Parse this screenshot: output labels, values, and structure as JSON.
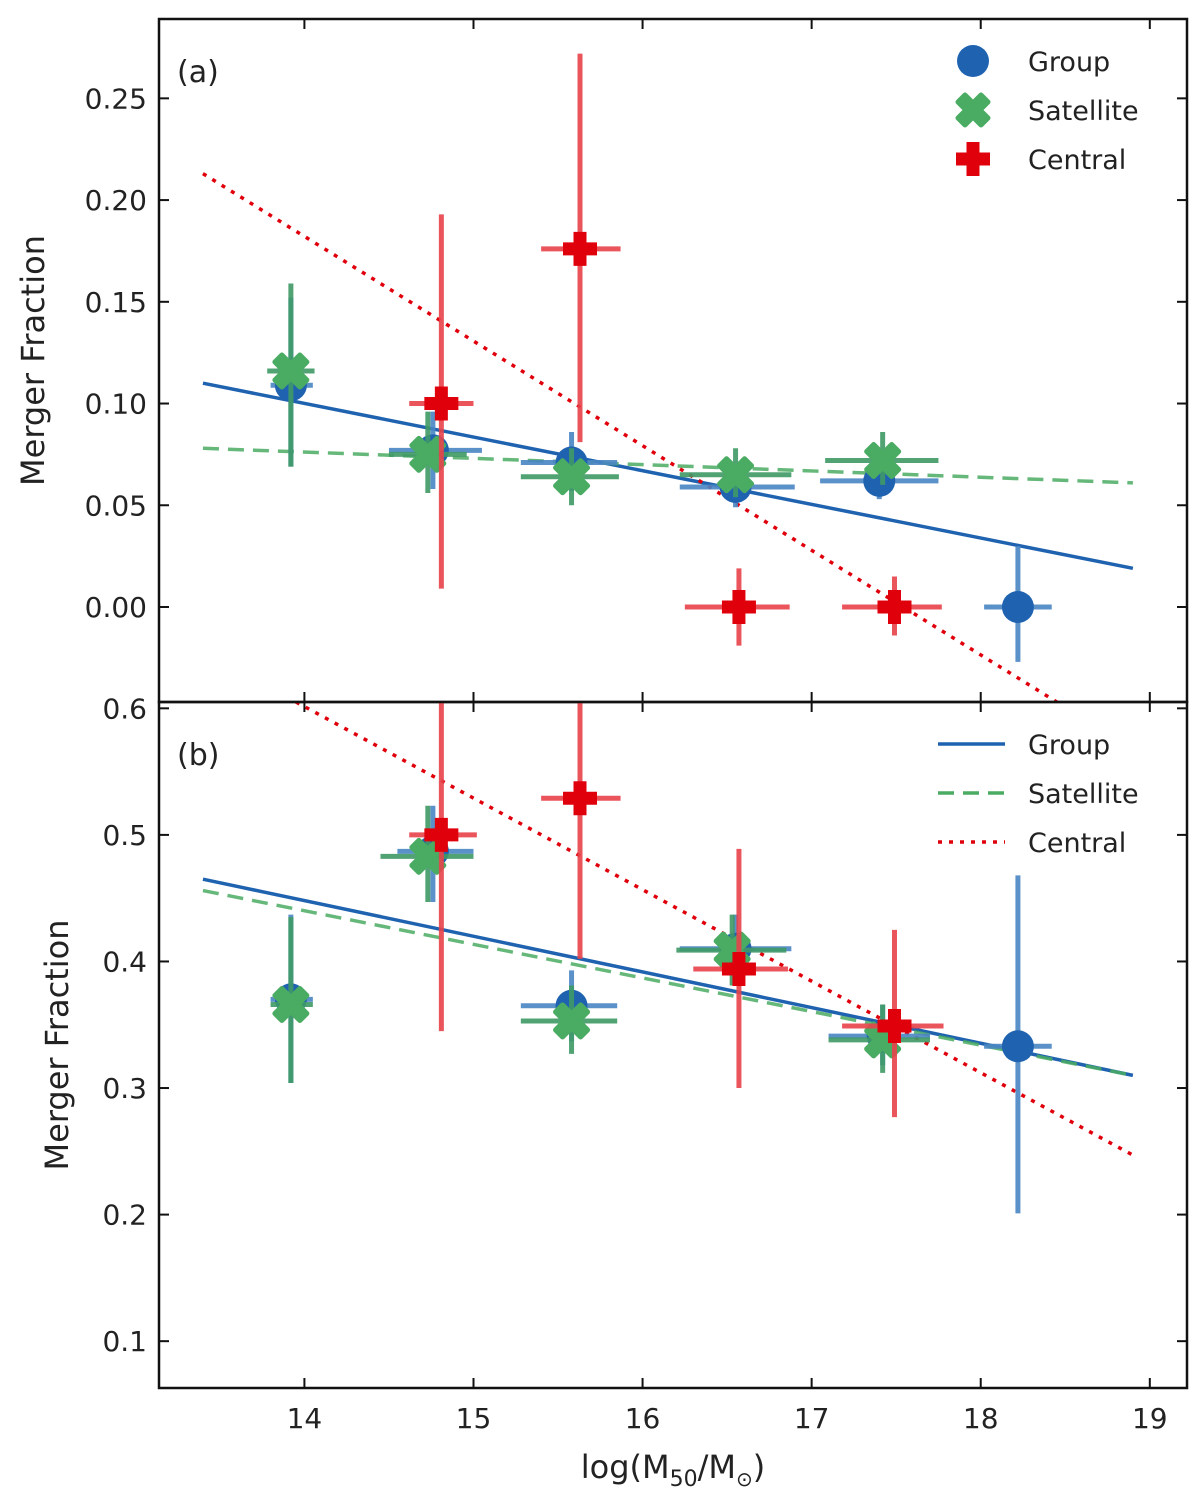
{
  "colors": {
    "group": "#1f63b0",
    "satellite": "#4aac62",
    "central": "#e0000b",
    "group_err": "#4a86c4",
    "satellite_err": "#3f9a66",
    "central_err": "#e8434b"
  },
  "chart_data": [
    {
      "type": "scatter",
      "panel_label": "(a)",
      "ylabel": "Merger Fraction",
      "xlabel": "",
      "xlim": [
        13.14,
        19.22
      ],
      "ylim": [
        -0.0467,
        0.289
      ],
      "yticks": [
        0.0,
        0.05,
        0.1,
        0.15,
        0.2,
        0.25
      ],
      "ytick_labels": [
        "0.00",
        "0.05",
        "0.10",
        "0.15",
        "0.20",
        "0.25"
      ],
      "xticks": [
        14,
        15,
        16,
        17,
        18,
        19
      ],
      "grid": false,
      "legend": {
        "placement": "top-right",
        "style": "markers",
        "entries": [
          "Group",
          "Satellite",
          "Central"
        ]
      },
      "series": [
        {
          "name": "Group",
          "key": "group",
          "marker": "circle",
          "points": [
            {
              "x": 13.92,
              "y": 0.109,
              "ylo": 0.069,
              "yhi": 0.152,
              "xlo": 13.8,
              "xhi": 14.05
            },
            {
              "x": 14.76,
              "y": 0.077,
              "ylo": 0.058,
              "yhi": 0.096,
              "xlo": 14.5,
              "xhi": 15.05
            },
            {
              "x": 15.58,
              "y": 0.071,
              "ylo": 0.057,
              "yhi": 0.086,
              "xlo": 15.28,
              "xhi": 15.85
            },
            {
              "x": 16.55,
              "y": 0.059,
              "ylo": 0.049,
              "yhi": 0.069,
              "xlo": 16.22,
              "xhi": 16.9
            },
            {
              "x": 17.4,
              "y": 0.062,
              "ylo": 0.053,
              "yhi": 0.071,
              "xlo": 17.05,
              "xhi": 17.75
            },
            {
              "x": 18.22,
              "y": 0.0,
              "ylo": -0.027,
              "yhi": 0.03,
              "xlo": 18.02,
              "xhi": 18.42
            }
          ],
          "fit": {
            "style": "solid",
            "x": [
              13.4,
              18.9
            ],
            "y": [
              0.11,
              0.019
            ]
          }
        },
        {
          "name": "Satellite",
          "key": "satellite",
          "marker": "x-filled",
          "points": [
            {
              "x": 13.92,
              "y": 0.116,
              "ylo": 0.069,
              "yhi": 0.159,
              "xlo": 13.78,
              "xhi": 14.06
            },
            {
              "x": 14.73,
              "y": 0.075,
              "ylo": 0.056,
              "yhi": 0.096,
              "xlo": 14.5,
              "xhi": 14.96
            },
            {
              "x": 15.58,
              "y": 0.064,
              "ylo": 0.05,
              "yhi": 0.078,
              "xlo": 15.28,
              "xhi": 15.86
            },
            {
              "x": 16.55,
              "y": 0.065,
              "ylo": 0.054,
              "yhi": 0.078,
              "xlo": 16.22,
              "xhi": 16.88
            },
            {
              "x": 17.42,
              "y": 0.072,
              "ylo": 0.06,
              "yhi": 0.086,
              "xlo": 17.08,
              "xhi": 17.75
            }
          ],
          "fit": {
            "style": "dashed",
            "x": [
              13.4,
              18.9
            ],
            "y": [
              0.078,
              0.061
            ]
          }
        },
        {
          "name": "Central",
          "key": "central",
          "marker": "plus-filled",
          "points": [
            {
              "x": 14.81,
              "y": 0.1,
              "ylo": 0.009,
              "yhi": 0.193,
              "xlo": 14.62,
              "xhi": 15.0
            },
            {
              "x": 15.63,
              "y": 0.176,
              "ylo": 0.081,
              "yhi": 0.272,
              "xlo": 15.4,
              "xhi": 15.87
            },
            {
              "x": 16.57,
              "y": 0.0,
              "ylo": -0.019,
              "yhi": 0.019,
              "xlo": 16.25,
              "xhi": 16.87
            },
            {
              "x": 17.49,
              "y": 0.0,
              "ylo": -0.014,
              "yhi": 0.015,
              "xlo": 17.18,
              "xhi": 17.77
            }
          ],
          "fit": {
            "style": "dotted",
            "x": [
              13.4,
              18.45
            ],
            "y": [
              0.213,
              -0.0467
            ]
          }
        }
      ]
    },
    {
      "type": "scatter",
      "panel_label": "(b)",
      "ylabel": "Merger Fraction",
      "xlabel": "log(M50/M⊙)",
      "xlabel_parts": {
        "pre": "log(M",
        "sub": "50",
        "mid": "/M",
        "sun": "⊙",
        "post": ")"
      },
      "xlim": [
        13.14,
        19.22
      ],
      "ylim": [
        0.063,
        0.605
      ],
      "yticks": [
        0.1,
        0.2,
        0.3,
        0.4,
        0.5,
        0.6
      ],
      "ytick_labels": [
        "0.1",
        "0.2",
        "0.3",
        "0.4",
        "0.5",
        "0.6"
      ],
      "xticks": [
        14,
        15,
        16,
        17,
        18,
        19
      ],
      "xtick_labels": [
        "14",
        "15",
        "16",
        "17",
        "18",
        "19"
      ],
      "grid": false,
      "legend": {
        "placement": "top-right",
        "style": "lines",
        "entries": [
          "Group",
          "Satellite",
          "Central"
        ]
      },
      "series": [
        {
          "name": "Group",
          "key": "group",
          "marker": "circle",
          "points": [
            {
              "x": 13.92,
              "y": 0.37,
              "ylo": 0.304,
              "yhi": 0.437,
              "xlo": 13.8,
              "xhi": 14.05
            },
            {
              "x": 14.76,
              "y": 0.487,
              "ylo": 0.447,
              "yhi": 0.523,
              "xlo": 14.55,
              "xhi": 15.0
            },
            {
              "x": 15.58,
              "y": 0.365,
              "ylo": 0.337,
              "yhi": 0.393,
              "xlo": 15.28,
              "xhi": 15.85
            },
            {
              "x": 16.55,
              "y": 0.41,
              "ylo": 0.381,
              "yhi": 0.437,
              "xlo": 16.22,
              "xhi": 16.88
            },
            {
              "x": 17.42,
              "y": 0.341,
              "ylo": 0.318,
              "yhi": 0.366,
              "xlo": 17.1,
              "xhi": 17.7
            },
            {
              "x": 18.22,
              "y": 0.333,
              "ylo": 0.201,
              "yhi": 0.468,
              "xlo": 18.02,
              "xhi": 18.42
            }
          ],
          "fit": {
            "style": "solid",
            "x": [
              13.4,
              18.9
            ],
            "y": [
              0.465,
              0.31
            ]
          }
        },
        {
          "name": "Satellite",
          "key": "satellite",
          "marker": "x-filled",
          "points": [
            {
              "x": 13.92,
              "y": 0.366,
              "ylo": 0.304,
              "yhi": 0.435,
              "xlo": 13.8,
              "xhi": 14.05
            },
            {
              "x": 14.73,
              "y": 0.483,
              "ylo": 0.447,
              "yhi": 0.523,
              "xlo": 14.45,
              "xhi": 15.0
            },
            {
              "x": 15.58,
              "y": 0.353,
              "ylo": 0.327,
              "yhi": 0.381,
              "xlo": 15.28,
              "xhi": 15.85
            },
            {
              "x": 16.53,
              "y": 0.409,
              "ylo": 0.381,
              "yhi": 0.437,
              "xlo": 16.2,
              "xhi": 16.85
            },
            {
              "x": 17.42,
              "y": 0.338,
              "ylo": 0.312,
              "yhi": 0.366,
              "xlo": 17.1,
              "xhi": 17.7
            }
          ],
          "fit": {
            "style": "dashed",
            "x": [
              13.4,
              18.9
            ],
            "y": [
              0.456,
              0.31
            ]
          }
        },
        {
          "name": "Central",
          "key": "central",
          "marker": "plus-filled",
          "points": [
            {
              "x": 14.81,
              "y": 0.5,
              "ylo": 0.345,
              "yhi": 0.605,
              "xlo": 14.62,
              "xhi": 15.02
            },
            {
              "x": 15.63,
              "y": 0.529,
              "ylo": 0.402,
              "yhi": 0.605,
              "xlo": 15.4,
              "xhi": 15.87
            },
            {
              "x": 16.57,
              "y": 0.394,
              "ylo": 0.3,
              "yhi": 0.489,
              "xlo": 16.3,
              "xhi": 16.86
            },
            {
              "x": 17.49,
              "y": 0.349,
              "ylo": 0.277,
              "yhi": 0.425,
              "xlo": 17.18,
              "xhi": 17.78
            }
          ],
          "fit": {
            "style": "dotted",
            "x": [
              13.95,
              18.9
            ],
            "y": [
              0.605,
              0.247
            ]
          }
        }
      ]
    }
  ]
}
